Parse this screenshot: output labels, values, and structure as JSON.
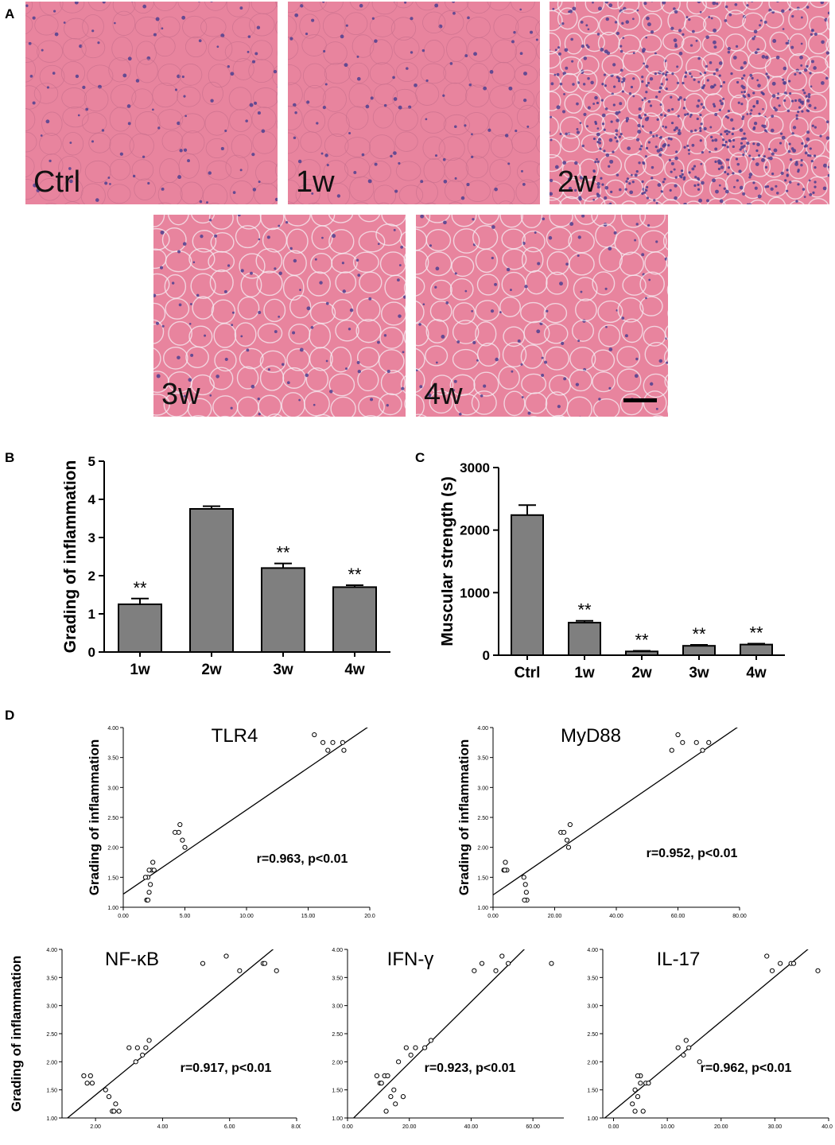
{
  "panels": {
    "a": "A",
    "b": "B",
    "c": "C",
    "d": "D"
  },
  "micrographs": [
    {
      "label": "Ctrl"
    },
    {
      "label": "1w"
    },
    {
      "label": "2w"
    },
    {
      "label": "3w"
    },
    {
      "label": "4w"
    }
  ],
  "colors": {
    "tissue": "#e8849e",
    "nuclei": "#4e3f8f",
    "bar": "#7f7f7f"
  },
  "chart_data": [
    {
      "type": "bar",
      "panel": "B",
      "title": "",
      "xlabel": "",
      "ylabel": "Grading of inflammation",
      "categories": [
        "1w",
        "2w",
        "3w",
        "4w"
      ],
      "values": [
        1.25,
        3.75,
        2.2,
        1.7
      ],
      "errors": [
        0.15,
        0.07,
        0.12,
        0.05
      ],
      "significance": [
        "**",
        "",
        "**",
        "**"
      ],
      "ylim": [
        0,
        5
      ],
      "yticks": [
        "0",
        "1",
        "2",
        "3",
        "4",
        "5"
      ]
    },
    {
      "type": "bar",
      "panel": "C",
      "title": "",
      "xlabel": "",
      "ylabel": "Muscular strength (s)",
      "categories": [
        "Ctrl",
        "1w",
        "2w",
        "3w",
        "4w"
      ],
      "values": [
        2240,
        520,
        60,
        150,
        170
      ],
      "errors": [
        160,
        30,
        10,
        15,
        15
      ],
      "significance": [
        "",
        "**",
        "**",
        "**",
        "**"
      ],
      "ylim": [
        0,
        3000
      ],
      "yticks": [
        "0",
        "1000",
        "2000",
        "3000"
      ]
    },
    {
      "type": "scatter",
      "panel": "D",
      "title": "TLR4",
      "ylabel": "Grading of inflammation",
      "annotation": "r=0.963, p<0.01",
      "xlim": [
        0,
        20
      ],
      "ylim": [
        1,
        4
      ],
      "xticks": [
        "0.00",
        "5.00",
        "10.00",
        "15.00",
        "20.0"
      ],
      "yticks": [
        "1.00",
        "1.50",
        "2.00",
        "2.50",
        "3.00",
        "3.50",
        "4.00"
      ],
      "fit": [
        [
          -0.5,
          1.15
        ],
        [
          20.5,
          4.1
        ]
      ],
      "points": [
        [
          1.9,
          1.12
        ],
        [
          2.1,
          1.25
        ],
        [
          2.2,
          1.38
        ],
        [
          2.0,
          1.5
        ],
        [
          2.3,
          1.62
        ],
        [
          2.5,
          1.62
        ],
        [
          2.4,
          1.75
        ],
        [
          2.1,
          1.62
        ],
        [
          1.8,
          1.5
        ],
        [
          2.0,
          1.12
        ],
        [
          4.5,
          2.25
        ],
        [
          4.8,
          2.12
        ],
        [
          4.6,
          2.38
        ],
        [
          5.0,
          2.0
        ],
        [
          4.2,
          2.25
        ],
        [
          15.5,
          3.88
        ],
        [
          16.2,
          3.75
        ],
        [
          16.6,
          3.62
        ],
        [
          17.0,
          3.75
        ],
        [
          17.9,
          3.62
        ],
        [
          17.8,
          3.75
        ]
      ]
    },
    {
      "type": "scatter",
      "panel": "D",
      "title": "MyD88",
      "ylabel": "Grading of inflammation",
      "annotation": "r=0.952, p<0.01",
      "xlim": [
        0,
        80
      ],
      "ylim": [
        1,
        4
      ],
      "xticks": [
        "0.00",
        "20.00",
        "40.00",
        "60.00",
        "80.00"
      ],
      "yticks": [
        "1.00",
        "1.50",
        "2.00",
        "2.50",
        "3.00",
        "3.50",
        "4.00"
      ],
      "fit": [
        [
          -3,
          1.1
        ],
        [
          82,
          4.1
        ]
      ],
      "points": [
        [
          3.5,
          1.62
        ],
        [
          4.0,
          1.75
        ],
        [
          4.5,
          1.62
        ],
        [
          3.8,
          1.62
        ],
        [
          10.0,
          1.5
        ],
        [
          10.5,
          1.38
        ],
        [
          10.8,
          1.25
        ],
        [
          11.0,
          1.12
        ],
        [
          10.2,
          1.12
        ],
        [
          22.0,
          2.25
        ],
        [
          23.0,
          2.25
        ],
        [
          24.0,
          2.12
        ],
        [
          24.5,
          2.0
        ],
        [
          25.0,
          2.38
        ],
        [
          58.0,
          3.62
        ],
        [
          60.0,
          3.88
        ],
        [
          61.5,
          3.75
        ],
        [
          66.0,
          3.75
        ],
        [
          68.0,
          3.62
        ],
        [
          70.0,
          3.75
        ]
      ]
    },
    {
      "type": "scatter",
      "panel": "D",
      "title": "NF-κB",
      "ylabel": "Grading of inflammation",
      "annotation": "r=0.917, p<0.01",
      "xlim": [
        1,
        8
      ],
      "ylim": [
        1,
        4
      ],
      "xticks": [
        "2.00",
        "4.00",
        "6.00",
        "8.00"
      ],
      "yticks": [
        "1.00",
        "1.50",
        "2.00",
        "2.50",
        "3.00",
        "3.50",
        "4.00"
      ],
      "fit": [
        [
          1.0,
          0.92
        ],
        [
          7.6,
          4.15
        ]
      ],
      "points": [
        [
          1.65,
          1.75
        ],
        [
          1.75,
          1.62
        ],
        [
          1.85,
          1.75
        ],
        [
          1.9,
          1.62
        ],
        [
          2.3,
          1.5
        ],
        [
          2.4,
          1.38
        ],
        [
          2.5,
          1.12
        ],
        [
          2.6,
          1.25
        ],
        [
          2.7,
          1.12
        ],
        [
          2.55,
          1.12
        ],
        [
          3.0,
          2.25
        ],
        [
          3.2,
          2.0
        ],
        [
          3.4,
          2.12
        ],
        [
          3.6,
          2.38
        ],
        [
          3.5,
          2.25
        ],
        [
          3.25,
          2.25
        ],
        [
          5.2,
          3.75
        ],
        [
          5.9,
          3.88
        ],
        [
          6.3,
          3.62
        ],
        [
          7.0,
          3.75
        ],
        [
          7.05,
          3.75
        ],
        [
          7.4,
          3.62
        ]
      ]
    },
    {
      "type": "scatter",
      "panel": "D",
      "title": "IFN-γ",
      "ylabel": "",
      "annotation": "r=0.923, p<0.01",
      "xlim": [
        0,
        70
      ],
      "ylim": [
        1,
        4
      ],
      "xticks": [
        "0.00",
        "20.00",
        "40.00",
        "60.00"
      ],
      "yticks": [
        "1.00",
        "1.50",
        "2.00",
        "2.50",
        "3.00",
        "3.50",
        "4.00"
      ],
      "fit": [
        [
          0.5,
          0.92
        ],
        [
          59,
          4.1
        ]
      ],
      "points": [
        [
          9.5,
          1.75
        ],
        [
          10.5,
          1.62
        ],
        [
          11.0,
          1.62
        ],
        [
          12.0,
          1.75
        ],
        [
          13.0,
          1.75
        ],
        [
          12.5,
          1.12
        ],
        [
          14.0,
          1.38
        ],
        [
          15.0,
          1.5
        ],
        [
          15.5,
          1.25
        ],
        [
          16.5,
          2.0
        ],
        [
          18.0,
          1.38
        ],
        [
          19.0,
          2.25
        ],
        [
          20.5,
          2.12
        ],
        [
          22.0,
          2.25
        ],
        [
          25.0,
          2.25
        ],
        [
          27.0,
          2.38
        ],
        [
          41.0,
          3.62
        ],
        [
          43.5,
          3.75
        ],
        [
          48.0,
          3.62
        ],
        [
          50.0,
          3.88
        ],
        [
          52.0,
          3.75
        ],
        [
          66.0,
          3.75
        ]
      ]
    },
    {
      "type": "scatter",
      "panel": "D",
      "title": "IL-17",
      "ylabel": "",
      "annotation": "r=0.962, p<0.01",
      "xlim": [
        -2,
        40
      ],
      "ylim": [
        1,
        4
      ],
      "xticks": [
        "0.00",
        "10.00",
        "20.00",
        "30.00",
        "40.00"
      ],
      "yticks": [
        "1.00",
        "1.50",
        "2.00",
        "2.50",
        "3.00",
        "3.50",
        "4.00"
      ],
      "fit": [
        [
          -2,
          0.97
        ],
        [
          38,
          4.15
        ]
      ],
      "points": [
        [
          3.5,
          1.25
        ],
        [
          4.0,
          1.5
        ],
        [
          4.5,
          1.38
        ],
        [
          5.0,
          1.62
        ],
        [
          5.5,
          1.12
        ],
        [
          6.0,
          1.62
        ],
        [
          5.0,
          1.75
        ],
        [
          4.0,
          1.12
        ],
        [
          6.5,
          1.62
        ],
        [
          4.5,
          1.75
        ],
        [
          12.0,
          2.25
        ],
        [
          13.0,
          2.12
        ],
        [
          13.5,
          2.38
        ],
        [
          14.0,
          2.25
        ],
        [
          16.0,
          2.0
        ],
        [
          28.5,
          3.88
        ],
        [
          29.5,
          3.62
        ],
        [
          31.0,
          3.75
        ],
        [
          33.0,
          3.75
        ],
        [
          33.5,
          3.75
        ],
        [
          38.0,
          3.62
        ]
      ]
    }
  ]
}
